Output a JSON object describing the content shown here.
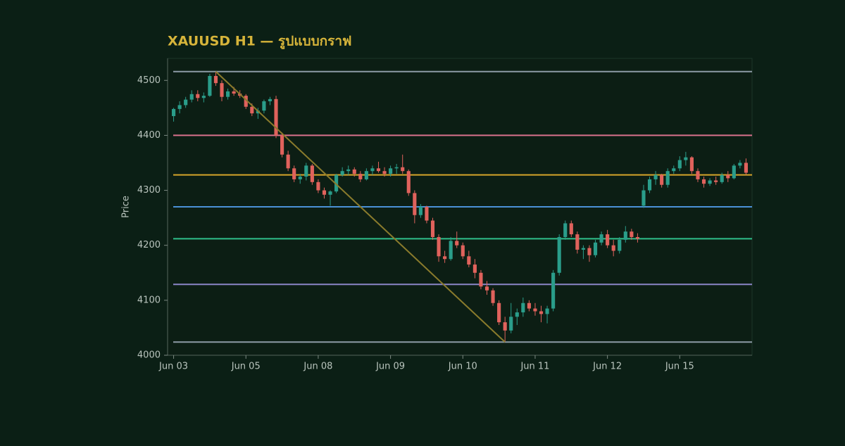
{
  "chart_data": {
    "type": "candlestick",
    "title": "XAUUSD H1 — รูปแบบกราฟ",
    "ylabel": "Price",
    "xlim": [
      -1,
      96
    ],
    "xticks": [
      {
        "value": 0,
        "label": "Jun 03"
      },
      {
        "value": 12,
        "label": "Jun 05"
      },
      {
        "value": 24,
        "label": "Jun 08"
      },
      {
        "value": 36,
        "label": "Jun 09"
      },
      {
        "value": 48,
        "label": "Jun 10"
      },
      {
        "value": 60,
        "label": "Jun 11"
      },
      {
        "value": 72,
        "label": "Jun 12"
      },
      {
        "value": 84,
        "label": "Jun 15"
      }
    ],
    "ylim": [
      4000,
      4540
    ],
    "yticks": [
      4000,
      4100,
      4200,
      4300,
      4400,
      4500
    ],
    "up_color": "#2a9d8a",
    "down_color": "#e0625c",
    "open": [
      4435,
      4448,
      4455,
      4465,
      4475,
      4468,
      4472,
      4508,
      4495,
      4470,
      4480,
      4476,
      4472,
      4452,
      4440,
      4445,
      4462,
      4466,
      4400,
      4365,
      4340,
      4320,
      4325,
      4345,
      4315,
      4300,
      4292,
      4298,
      4328,
      4335,
      4338,
      4330,
      4320,
      4335,
      4340,
      4335,
      4330,
      4340,
      4342,
      4335,
      4295,
      4255,
      4270,
      4245,
      4215,
      4180,
      4175,
      4208,
      4200,
      4180,
      4165,
      4150,
      4125,
      4118,
      4095,
      4060,
      4045,
      4070,
      4078,
      4095,
      4085,
      4080,
      4075,
      4085,
      4150,
      4215,
      4240,
      4220,
      4192,
      4195,
      4182,
      4205,
      4220,
      4200,
      4190,
      4210,
      4225,
      4215,
      4272,
      4300,
      4320,
      4328,
      4310,
      4335,
      4340,
      4355,
      4360,
      4335,
      4320,
      4312,
      4318,
      4315,
      4328,
      4322,
      4345,
      4350
    ],
    "high": [
      4450,
      4462,
      4470,
      4482,
      4482,
      4478,
      4512,
      4516,
      4500,
      4485,
      4488,
      4482,
      4475,
      4458,
      4450,
      4465,
      4470,
      4472,
      4405,
      4372,
      4345,
      4330,
      4350,
      4348,
      4320,
      4305,
      4300,
      4330,
      4342,
      4345,
      4342,
      4335,
      4340,
      4345,
      4352,
      4342,
      4345,
      4348,
      4365,
      4338,
      4300,
      4275,
      4272,
      4250,
      4220,
      4190,
      4215,
      4225,
      4205,
      4190,
      4175,
      4155,
      4135,
      4122,
      4100,
      4070,
      4095,
      4085,
      4105,
      4100,
      4095,
      4090,
      4090,
      4155,
      4220,
      4245,
      4245,
      4225,
      4200,
      4200,
      4210,
      4225,
      4228,
      4210,
      4215,
      4235,
      4230,
      4222,
      4310,
      4325,
      4335,
      4330,
      4340,
      4345,
      4362,
      4370,
      4362,
      4340,
      4325,
      4322,
      4325,
      4332,
      4335,
      4348,
      4355,
      4358
    ],
    "low": [
      4425,
      4440,
      4450,
      4460,
      4462,
      4460,
      4470,
      4490,
      4462,
      4465,
      4472,
      4468,
      4448,
      4435,
      4430,
      4440,
      4455,
      4395,
      4360,
      4335,
      4315,
      4312,
      4318,
      4310,
      4295,
      4285,
      4272,
      4295,
      4325,
      4328,
      4325,
      4315,
      4318,
      4328,
      4332,
      4325,
      4325,
      4330,
      4330,
      4290,
      4240,
      4250,
      4240,
      4210,
      4170,
      4168,
      4172,
      4195,
      4175,
      4160,
      4140,
      4120,
      4110,
      4090,
      4055,
      4024,
      4040,
      4055,
      4070,
      4080,
      4072,
      4060,
      4058,
      4080,
      4145,
      4210,
      4215,
      4185,
      4175,
      4170,
      4178,
      4200,
      4195,
      4180,
      4185,
      4205,
      4210,
      4205,
      4268,
      4295,
      4310,
      4305,
      4305,
      4330,
      4335,
      4345,
      4330,
      4315,
      4305,
      4308,
      4310,
      4312,
      4315,
      4320,
      4340,
      4328
    ],
    "close": [
      4448,
      4455,
      4465,
      4475,
      4468,
      4472,
      4508,
      4495,
      4470,
      4480,
      4476,
      4472,
      4452,
      4440,
      4445,
      4462,
      4466,
      4400,
      4365,
      4340,
      4320,
      4325,
      4345,
      4315,
      4300,
      4292,
      4298,
      4328,
      4335,
      4338,
      4330,
      4320,
      4335,
      4340,
      4335,
      4330,
      4340,
      4342,
      4335,
      4295,
      4255,
      4270,
      4245,
      4215,
      4180,
      4175,
      4208,
      4200,
      4180,
      4165,
      4150,
      4125,
      4118,
      4095,
      4060,
      4045,
      4070,
      4078,
      4095,
      4085,
      4080,
      4075,
      4085,
      4150,
      4215,
      4240,
      4220,
      4192,
      4195,
      4182,
      4205,
      4220,
      4200,
      4190,
      4210,
      4225,
      4215,
      4212,
      4300,
      4320,
      4328,
      4310,
      4335,
      4340,
      4355,
      4360,
      4335,
      4320,
      4312,
      4318,
      4315,
      4328,
      4322,
      4345,
      4350,
      4332
    ],
    "levels": [
      {
        "value": 4516,
        "color": "#8d9ba6"
      },
      {
        "value": 4400,
        "color": "#d9728c"
      },
      {
        "value": 4328,
        "color": "#d6a52a"
      },
      {
        "value": 4270,
        "color": "#4a90d6"
      },
      {
        "value": 4212,
        "color": "#2fbf8a"
      },
      {
        "value": 4129,
        "color": "#8b86c8"
      },
      {
        "value": 4024,
        "color": "#8d9ba6"
      }
    ],
    "trendline": {
      "x": [
        7,
        55
      ],
      "y": [
        4516,
        4024
      ],
      "color": "#8a7b2c"
    }
  }
}
